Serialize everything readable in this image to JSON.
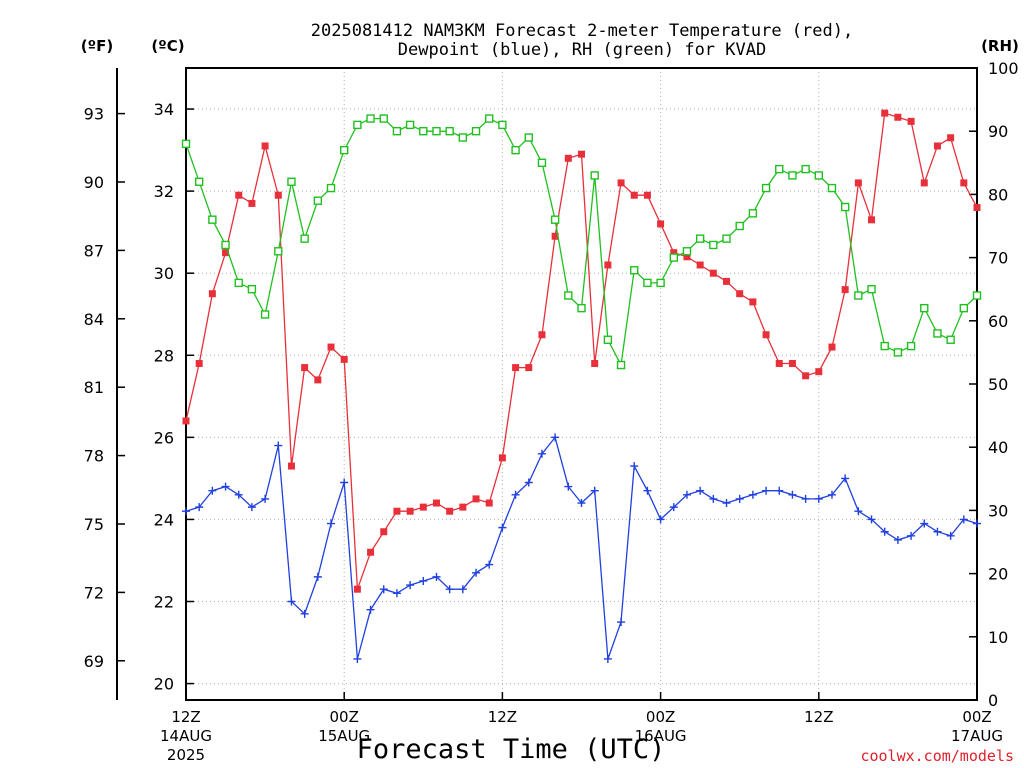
{
  "chart_data": {
    "type": "line",
    "title_line1": "2025081412 NAM3KM Forecast 2-meter Temperature (red),",
    "title_line2": "Dewpoint (blue), RH (green) for KVAD",
    "xlabel": "Forecast Time (UTC)",
    "credit": "coolwx.com/models",
    "units": {
      "fahrenheit": "(ºF)",
      "celsius": "(ºC)",
      "rh": "(RH)"
    },
    "x_range_hours": [
      0,
      60
    ],
    "y_left_c_range": [
      19.6,
      35.0
    ],
    "y_right_rh_range": [
      0,
      100
    ],
    "grid": true,
    "fahrenheit_ticks": [
      "69",
      "72",
      "75",
      "78",
      "81",
      "84",
      "87",
      "90",
      "93"
    ],
    "celsius_ticks": [
      "20",
      "22",
      "24",
      "26",
      "28",
      "30",
      "32",
      "34"
    ],
    "rh_ticks": [
      "0",
      "10",
      "20",
      "30",
      "40",
      "50",
      "60",
      "70",
      "80",
      "90",
      "100"
    ],
    "x_ticks": [
      {
        "hour": 0,
        "lines": [
          "12Z",
          "14AUG",
          "2025"
        ]
      },
      {
        "hour": 12,
        "lines": [
          "00Z",
          "15AUG"
        ]
      },
      {
        "hour": 24,
        "lines": [
          "12Z"
        ]
      },
      {
        "hour": 36,
        "lines": [
          "00Z",
          "16AUG"
        ]
      },
      {
        "hour": 48,
        "lines": [
          "12Z"
        ]
      },
      {
        "hour": 60,
        "lines": [
          "00Z",
          "17AUG"
        ]
      }
    ],
    "series": [
      {
        "name": "Temperature",
        "unit": "C",
        "color": "#e8303a",
        "marker": "filled-square",
        "values": [
          26.4,
          27.8,
          29.5,
          30.5,
          31.9,
          31.7,
          33.1,
          31.9,
          25.3,
          27.7,
          27.4,
          28.2,
          27.9,
          22.3,
          23.2,
          23.7,
          24.2,
          24.2,
          24.3,
          24.4,
          24.2,
          24.3,
          24.5,
          24.4,
          25.5,
          27.7,
          27.7,
          28.5,
          30.9,
          32.8,
          32.9,
          27.8,
          30.2,
          32.2,
          31.9,
          31.9,
          31.2,
          30.5,
          30.4,
          30.2,
          30.0,
          29.8,
          29.5,
          29.3,
          28.5,
          27.8,
          27.8,
          27.5,
          27.6,
          28.2,
          29.6,
          32.2,
          31.3,
          33.9,
          33.8,
          33.7,
          32.2,
          33.1,
          33.3,
          32.2,
          31.6
        ]
      },
      {
        "name": "Dewpoint",
        "unit": "C",
        "color": "#2040e0",
        "marker": "plus",
        "values": [
          24.2,
          24.3,
          24.7,
          24.8,
          24.6,
          24.3,
          24.5,
          25.8,
          22.0,
          21.7,
          22.6,
          23.9,
          24.9,
          20.6,
          21.8,
          22.3,
          22.2,
          22.4,
          22.5,
          22.6,
          22.3,
          22.3,
          22.7,
          22.9,
          23.8,
          24.6,
          24.9,
          25.6,
          26.0,
          24.8,
          24.4,
          24.7,
          20.6,
          21.5,
          25.3,
          24.7,
          24.0,
          24.3,
          24.6,
          24.7,
          24.5,
          24.4,
          24.5,
          24.6,
          24.7,
          24.7,
          24.6,
          24.5,
          24.5,
          24.6,
          25.0,
          24.2,
          24.0,
          23.7,
          23.5,
          23.6,
          23.9,
          23.7,
          23.6,
          24.0,
          23.9
        ]
      },
      {
        "name": "RH",
        "unit": "%",
        "color": "#20c020",
        "marker": "open-square",
        "values": [
          88,
          82,
          76,
          72,
          66,
          65,
          61,
          71,
          82,
          73,
          79,
          81,
          87,
          91,
          92,
          92,
          90,
          91,
          90,
          90,
          90,
          89,
          90,
          92,
          91,
          87,
          89,
          85,
          76,
          64,
          62,
          83,
          57,
          53,
          68,
          66,
          66,
          70,
          71,
          73,
          72,
          73,
          75,
          77,
          81,
          84,
          83,
          84,
          83,
          81,
          78,
          64,
          65,
          56,
          55,
          56,
          62,
          58,
          57,
          62,
          64
        ]
      }
    ]
  }
}
